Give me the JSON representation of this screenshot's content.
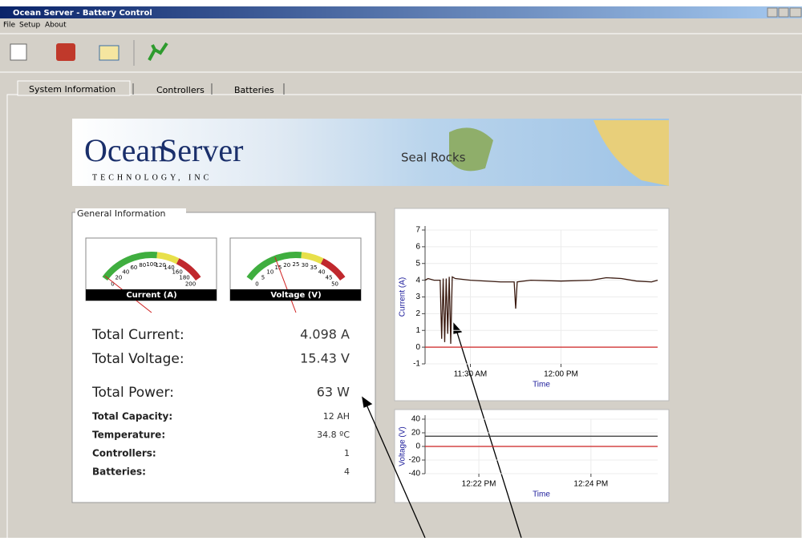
{
  "window": {
    "title": "Ocean Server - Battery Control"
  },
  "menu": [
    "File",
    "Setup",
    "About"
  ],
  "tabs": [
    "System Information",
    "Controllers",
    "Batteries"
  ],
  "banner": {
    "logo_left": "Ocean",
    "logo_right": "Server",
    "logo_sub": "TECHNOLOGY, INC",
    "map_label": "Seal Rocks"
  },
  "general_info": {
    "title": "General Information",
    "gauges": [
      {
        "label": "Current (A)",
        "min": 0,
        "max": 200,
        "ticks": [
          0,
          20,
          40,
          60,
          80,
          100,
          120,
          140,
          160,
          180,
          200
        ],
        "value": 4.098
      },
      {
        "label": "Voltage (V)",
        "min": 0,
        "max": 50,
        "ticks": [
          0,
          5,
          10,
          15,
          20,
          25,
          30,
          35,
          40,
          45,
          50
        ],
        "value": 15.43
      }
    ],
    "rows": [
      {
        "label": "Total Current:",
        "value": "4.098 A"
      },
      {
        "label": "Total Voltage:",
        "value": "15.43 V"
      },
      {
        "label": "Total Power:",
        "value": "63 W"
      },
      {
        "label": "Total Capacity:",
        "value": "12 AH"
      },
      {
        "label": "Temperature:",
        "value": "34.8 ºC"
      },
      {
        "label": "Controllers:",
        "value": "1"
      },
      {
        "label": "Batteries:",
        "value": "4"
      }
    ]
  },
  "chart_data": [
    {
      "type": "line",
      "x_label": "Time",
      "y_label": "Current (A)",
      "x": [
        15,
        16,
        18,
        20,
        20.5,
        21,
        21.5,
        22,
        22.5,
        23,
        23.5,
        24,
        25,
        30,
        40,
        44.5,
        45,
        45.5,
        50,
        60,
        70,
        75,
        80,
        85,
        90,
        92
      ],
      "series": [
        {
          "color": "#3a1a10",
          "values": [
            4,
            4.1,
            4,
            4,
            0.5,
            4.1,
            0.3,
            4.1,
            0.8,
            4.2,
            0.2,
            4.2,
            4.1,
            4,
            3.9,
            3.9,
            2.3,
            3.9,
            4,
            3.95,
            4,
            4.15,
            4.1,
            3.95,
            3.9,
            4
          ]
        }
      ],
      "reference_line": {
        "value": 0,
        "color": "#cc2222"
      },
      "xlim": [
        15,
        92
      ],
      "xticks": [
        {
          "value": 30,
          "label": "11:30 AM"
        },
        {
          "value": 60,
          "label": "12:00 PM"
        }
      ],
      "ylim": [
        -1,
        7
      ],
      "yticks": [
        -1,
        0,
        1,
        2,
        3,
        4,
        5,
        6,
        7
      ],
      "grid": true
    },
    {
      "type": "line",
      "x_label": "Time",
      "y_label": "Voltage (V)",
      "x": [
        21.04,
        25.19
      ],
      "series": [
        {
          "color": "#333333",
          "values": [
            15,
            15
          ]
        }
      ],
      "reference_line": {
        "value": 0,
        "color": "#cc2222"
      },
      "xlim": [
        21.04,
        25.19
      ],
      "xticks": [
        {
          "value": 22,
          "label": "12:22 PM"
        },
        {
          "value": 24,
          "label": "12:24 PM"
        }
      ],
      "ylim": [
        -40,
        40
      ],
      "yticks": [
        -40,
        -20,
        0,
        20,
        40
      ],
      "grid": true
    }
  ]
}
